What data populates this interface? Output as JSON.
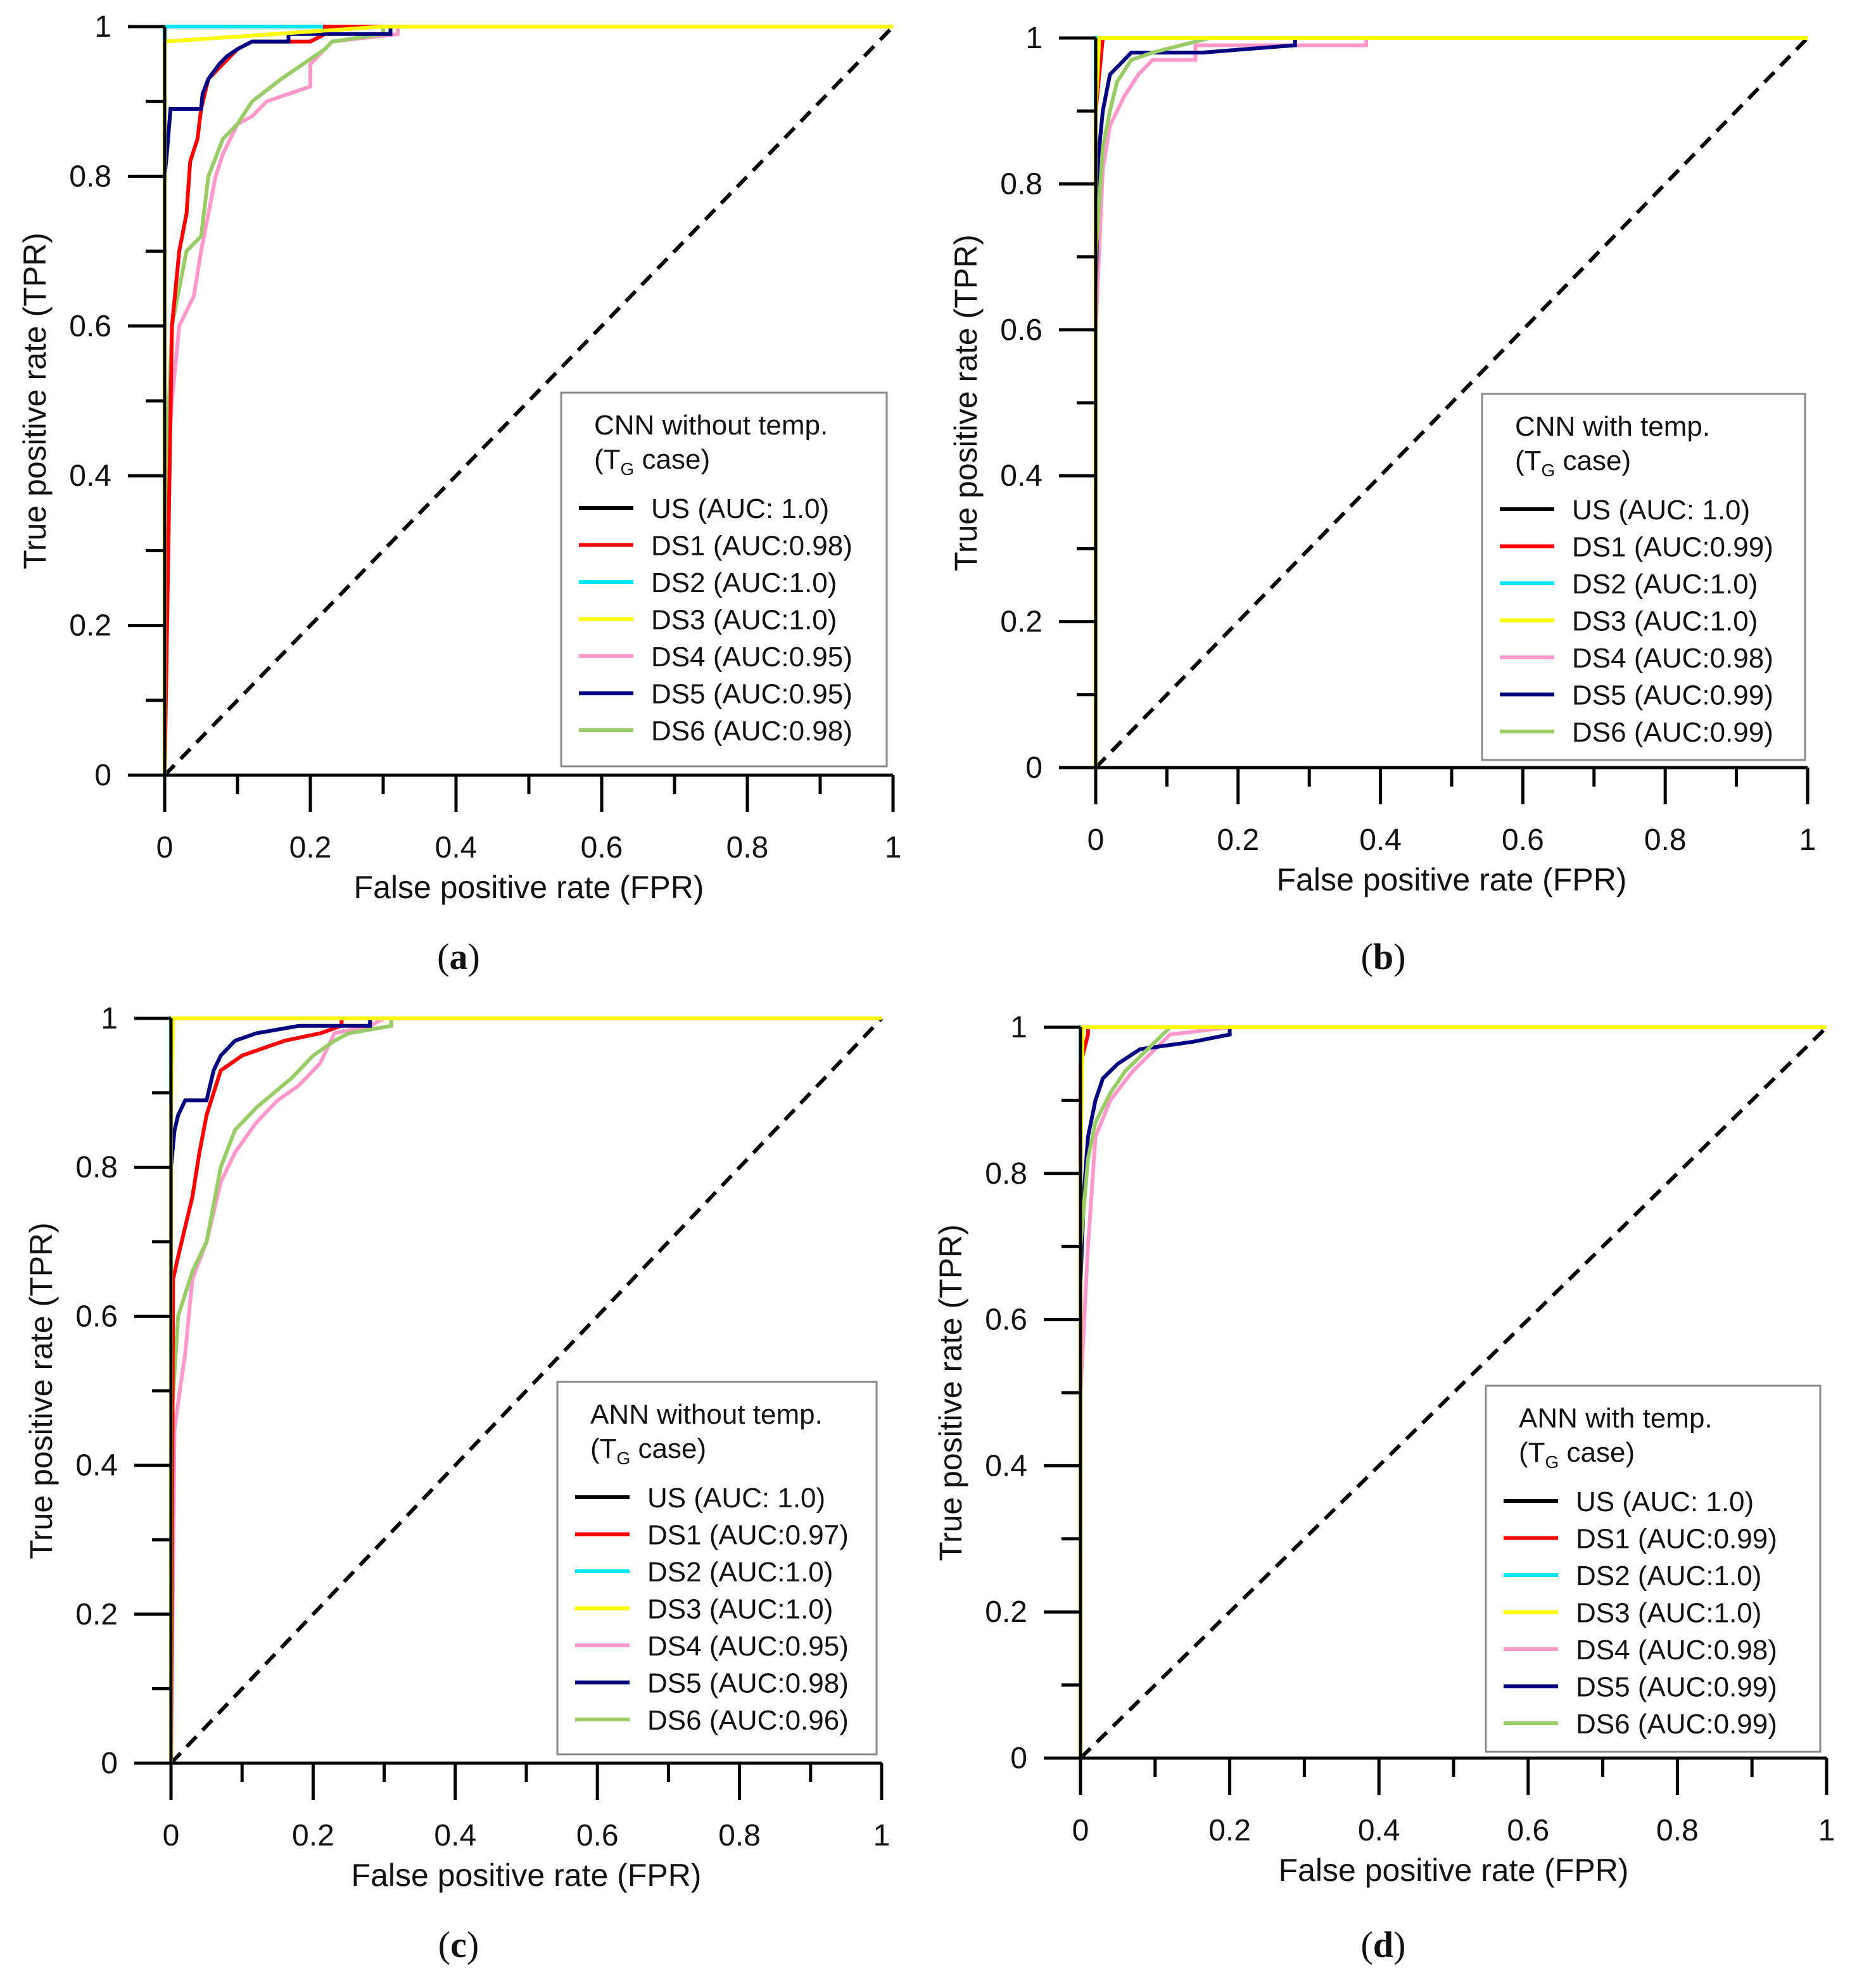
{
  "chart_data": [
    {
      "id": "a",
      "type": "line",
      "caption": "(a)",
      "caption_letter": "a",
      "xlabel": "False positive rate (FPR)",
      "ylabel": "True positive rate (TPR)",
      "xlim": [
        0,
        1
      ],
      "ylim": [
        0,
        1
      ],
      "xticks": [
        "0",
        "0.2",
        "0.4",
        "0.6",
        "0.8",
        "1"
      ],
      "yticks": [
        "0",
        "0.2",
        "0.4",
        "0.6",
        "0.8",
        "1"
      ],
      "legend": {
        "title": "CNN without temp.",
        "subtitle": [
          "(T",
          "G",
          " case)"
        ],
        "placement": "bottom-right"
      },
      "series": [
        {
          "name": "US (AUC: 1.0)",
          "color": "#000000",
          "x": [
            0,
            0,
            1
          ],
          "y": [
            0,
            1,
            1
          ]
        },
        {
          "name": "DS1 (AUC:0.98)",
          "color": "#ff0000",
          "x": [
            0,
            0.01,
            0.02,
            0.03,
            0.035,
            0.045,
            0.05,
            0.06,
            0.07,
            0.09,
            0.1,
            0.12,
            0.2,
            0.22,
            0.22,
            1
          ],
          "y": [
            0,
            0.6,
            0.7,
            0.75,
            0.82,
            0.85,
            0.89,
            0.93,
            0.94,
            0.96,
            0.97,
            0.98,
            0.98,
            0.99,
            1,
            1
          ]
        },
        {
          "name": "DS2 (AUC:1.0)",
          "color": "#00e5ff",
          "x": [
            0,
            0,
            1
          ],
          "y": [
            0,
            1,
            1
          ]
        },
        {
          "name": "DS3 (AUC:1.0)",
          "color": "#ffff00",
          "x": [
            0,
            0,
            0.3,
            1
          ],
          "y": [
            0,
            0.98,
            1,
            1
          ]
        },
        {
          "name": "DS4 (AUC:0.95)",
          "color": "#ff99cc",
          "x": [
            0,
            0,
            0.01,
            0.02,
            0.04,
            0.05,
            0.06,
            0.07,
            0.08,
            0.1,
            0.12,
            0.14,
            0.17,
            0.2,
            0.2,
            0.22,
            0.23,
            0.32,
            0.32,
            1
          ],
          "y": [
            0,
            0.35,
            0.5,
            0.6,
            0.64,
            0.7,
            0.75,
            0.8,
            0.83,
            0.87,
            0.88,
            0.9,
            0.91,
            0.92,
            0.95,
            0.97,
            0.98,
            0.99,
            1,
            1
          ]
        },
        {
          "name": "DS5 (AUC:0.95)",
          "color": "#000080",
          "x": [
            0,
            0,
            0.003,
            0.008,
            0.05,
            0.052,
            0.06,
            0.075,
            0.085,
            0.1,
            0.12,
            0.17,
            0.17,
            0.31,
            0.31,
            1
          ],
          "y": [
            0,
            0.8,
            0.83,
            0.89,
            0.89,
            0.91,
            0.93,
            0.95,
            0.96,
            0.97,
            0.98,
            0.98,
            0.99,
            0.99,
            1,
            1
          ]
        },
        {
          "name": "DS6 (AUC:0.98)",
          "color": "#99cc66",
          "x": [
            0,
            0,
            0.01,
            0.02,
            0.03,
            0.05,
            0.06,
            0.08,
            0.1,
            0.12,
            0.16,
            0.19,
            0.22,
            0.23,
            0.3,
            0.3,
            1
          ],
          "y": [
            0,
            0.35,
            0.6,
            0.65,
            0.7,
            0.72,
            0.8,
            0.85,
            0.87,
            0.9,
            0.93,
            0.95,
            0.97,
            0.98,
            0.99,
            1,
            1
          ]
        }
      ],
      "draw_order": [
        0,
        2,
        4,
        6,
        1,
        5,
        3
      ]
    },
    {
      "id": "b",
      "type": "line",
      "caption": "(b)",
      "caption_letter": "b",
      "xlabel": "False positive rate (FPR)",
      "ylabel": "True positive rate (TPR)",
      "xlim": [
        0,
        1
      ],
      "ylim": [
        0,
        1
      ],
      "xticks": [
        "0",
        "0.2",
        "0.4",
        "0.6",
        "0.8",
        "1"
      ],
      "yticks": [
        "0",
        "0.2",
        "0.4",
        "0.6",
        "0.8",
        "1"
      ],
      "legend": {
        "title": "CNN with temp.",
        "subtitle": [
          "(T",
          "G",
          " case)"
        ],
        "placement": "bottom-right"
      },
      "series": [
        {
          "name": "US (AUC: 1.0)",
          "color": "#000000",
          "x": [
            0,
            0,
            1
          ],
          "y": [
            0,
            1,
            1
          ]
        },
        {
          "name": "DS1 (AUC:0.99)",
          "color": "#ff0000",
          "x": [
            0,
            0,
            0.005,
            0.01,
            1
          ],
          "y": [
            0,
            0.9,
            0.95,
            1,
            1
          ]
        },
        {
          "name": "DS2 (AUC:1.0)",
          "color": "#00e5ff",
          "x": [
            0,
            0,
            1
          ],
          "y": [
            0,
            1,
            1
          ]
        },
        {
          "name": "DS3 (AUC:1.0)",
          "color": "#ffff00",
          "x": [
            0,
            0,
            0.005,
            0.15,
            1
          ],
          "y": [
            0,
            0.9,
            1,
            1,
            1
          ]
        },
        {
          "name": "DS4 (AUC:0.98)",
          "color": "#ff99cc",
          "x": [
            0,
            0,
            0.01,
            0.02,
            0.04,
            0.06,
            0.08,
            0.14,
            0.14,
            0.38,
            0.38,
            1
          ],
          "y": [
            0,
            0.6,
            0.82,
            0.88,
            0.92,
            0.95,
            0.97,
            0.97,
            0.99,
            0.99,
            1,
            1
          ]
        },
        {
          "name": "DS5 (AUC:0.99)",
          "color": "#000080",
          "x": [
            0,
            0,
            0.005,
            0.01,
            0.02,
            0.04,
            0.05,
            0.15,
            0.28,
            0.28,
            1
          ],
          "y": [
            0,
            0.65,
            0.85,
            0.9,
            0.95,
            0.97,
            0.98,
            0.98,
            0.99,
            1,
            1
          ]
        },
        {
          "name": "DS6 (AUC:0.99)",
          "color": "#99cc66",
          "x": [
            0,
            0,
            0.01,
            0.02,
            0.03,
            0.05,
            0.08,
            0.12,
            0.16,
            1
          ],
          "y": [
            0,
            0.7,
            0.85,
            0.9,
            0.94,
            0.97,
            0.98,
            0.99,
            1,
            1
          ]
        }
      ],
      "draw_order": [
        0,
        2,
        4,
        5,
        6,
        1,
        3
      ]
    },
    {
      "id": "c",
      "type": "line",
      "caption": "(c)",
      "caption_letter": "c",
      "xlabel": "False positive rate (FPR)",
      "ylabel": "True positive rate (TPR)",
      "xlim": [
        0,
        1
      ],
      "ylim": [
        0,
        1
      ],
      "xticks": [
        "0",
        "0.2",
        "0.4",
        "0.6",
        "0.8",
        "1"
      ],
      "yticks": [
        "0",
        "0.2",
        "0.4",
        "0.6",
        "0.8",
        "1"
      ],
      "legend": {
        "title": "ANN without temp.",
        "subtitle": [
          "(T",
          "G",
          " case)"
        ],
        "placement": "bottom-right"
      },
      "series": [
        {
          "name": "US (AUC: 1.0)",
          "color": "#000000",
          "x": [
            0,
            0,
            1
          ],
          "y": [
            0,
            1,
            1
          ]
        },
        {
          "name": "DS1 (AUC:0.97)",
          "color": "#ff0000",
          "x": [
            0,
            0.003,
            0.01,
            0.02,
            0.03,
            0.04,
            0.05,
            0.06,
            0.07,
            0.1,
            0.13,
            0.16,
            0.21,
            0.24,
            0.24,
            1
          ],
          "y": [
            0,
            0.65,
            0.68,
            0.72,
            0.76,
            0.82,
            0.87,
            0.9,
            0.93,
            0.95,
            0.96,
            0.97,
            0.98,
            0.99,
            1,
            1
          ]
        },
        {
          "name": "DS2 (AUC:1.0)",
          "color": "#00e5ff",
          "x": [
            0,
            0,
            1
          ],
          "y": [
            0,
            1,
            1
          ]
        },
        {
          "name": "DS3 (AUC:1.0)",
          "color": "#ffff00",
          "x": [
            0,
            0,
            0.003,
            0.3,
            1
          ],
          "y": [
            0,
            0.88,
            1,
            1,
            1
          ]
        },
        {
          "name": "DS4 (AUC:0.95)",
          "color": "#ff99cc",
          "x": [
            0,
            0.005,
            0.02,
            0.03,
            0.05,
            0.07,
            0.09,
            0.12,
            0.15,
            0.18,
            0.21,
            0.22,
            0.23,
            0.28,
            0.3,
            1
          ],
          "y": [
            0,
            0.45,
            0.55,
            0.65,
            0.7,
            0.78,
            0.82,
            0.86,
            0.89,
            0.91,
            0.94,
            0.96,
            0.98,
            0.99,
            1,
            1
          ]
        },
        {
          "name": "DS5 (AUC:0.98)",
          "color": "#000080",
          "x": [
            0,
            0,
            0.005,
            0.01,
            0.02,
            0.05,
            0.06,
            0.07,
            0.09,
            0.12,
            0.18,
            0.28,
            0.28,
            1
          ],
          "y": [
            0,
            0.8,
            0.85,
            0.87,
            0.89,
            0.89,
            0.93,
            0.95,
            0.97,
            0.98,
            0.99,
            0.99,
            1,
            1
          ]
        },
        {
          "name": "DS6 (AUC:0.96)",
          "color": "#99cc66",
          "x": [
            0,
            0,
            0.01,
            0.03,
            0.05,
            0.07,
            0.09,
            0.12,
            0.17,
            0.2,
            0.23,
            0.25,
            0.31,
            0.31,
            1
          ],
          "y": [
            0,
            0.45,
            0.6,
            0.66,
            0.7,
            0.8,
            0.85,
            0.88,
            0.92,
            0.95,
            0.97,
            0.98,
            0.99,
            1,
            1
          ]
        }
      ],
      "draw_order": [
        0,
        2,
        4,
        6,
        1,
        5,
        3
      ]
    },
    {
      "id": "d",
      "type": "line",
      "caption": "(d)",
      "caption_letter": "d",
      "xlabel": "False positive rate (FPR)",
      "ylabel": "True positive rate (TPR)",
      "xlim": [
        0,
        1
      ],
      "ylim": [
        0,
        1
      ],
      "xticks": [
        "0",
        "0.2",
        "0.4",
        "0.6",
        "0.8",
        "1"
      ],
      "yticks": [
        "0",
        "0.2",
        "0.4",
        "0.6",
        "0.8",
        "1"
      ],
      "legend": {
        "title": "ANN with temp.",
        "subtitle": [
          "(T",
          "G",
          " case)"
        ],
        "placement": "bottom-right"
      },
      "series": [
        {
          "name": "US (AUC: 1.0)",
          "color": "#000000",
          "x": [
            0,
            0,
            1
          ],
          "y": [
            0,
            1,
            1
          ]
        },
        {
          "name": "DS1 (AUC:0.99)",
          "color": "#ff0000",
          "x": [
            0,
            0,
            0.01,
            0.01,
            1
          ],
          "y": [
            0,
            0.95,
            0.99,
            1,
            1
          ]
        },
        {
          "name": "DS2 (AUC:1.0)",
          "color": "#00e5ff",
          "x": [
            0,
            0,
            1
          ],
          "y": [
            0,
            1,
            1
          ]
        },
        {
          "name": "DS3 (AUC:1.0)",
          "color": "#ffff00",
          "x": [
            0,
            0,
            0.003,
            0.12,
            1
          ],
          "y": [
            0,
            0.8,
            1,
            1,
            1
          ]
        },
        {
          "name": "DS4 (AUC:0.98)",
          "color": "#ff99cc",
          "x": [
            0,
            0,
            0.01,
            0.02,
            0.04,
            0.07,
            0.1,
            0.12,
            0.2,
            1
          ],
          "y": [
            0,
            0.5,
            0.7,
            0.85,
            0.9,
            0.94,
            0.97,
            0.99,
            1,
            1
          ]
        },
        {
          "name": "DS5 (AUC:0.99)",
          "color": "#000080",
          "x": [
            0,
            0,
            0.005,
            0.01,
            0.02,
            0.03,
            0.05,
            0.08,
            0.15,
            0.2,
            0.2,
            1
          ],
          "y": [
            0,
            0.65,
            0.78,
            0.85,
            0.9,
            0.93,
            0.95,
            0.97,
            0.98,
            0.99,
            1,
            1
          ]
        },
        {
          "name": "DS6 (AUC:0.99)",
          "color": "#99cc66",
          "x": [
            0,
            0,
            0.01,
            0.02,
            0.04,
            0.06,
            0.08,
            0.1,
            0.12,
            1
          ],
          "y": [
            0,
            0.7,
            0.82,
            0.87,
            0.91,
            0.94,
            0.96,
            0.98,
            1,
            1
          ]
        }
      ],
      "draw_order": [
        0,
        2,
        4,
        5,
        6,
        1,
        3
      ]
    }
  ]
}
